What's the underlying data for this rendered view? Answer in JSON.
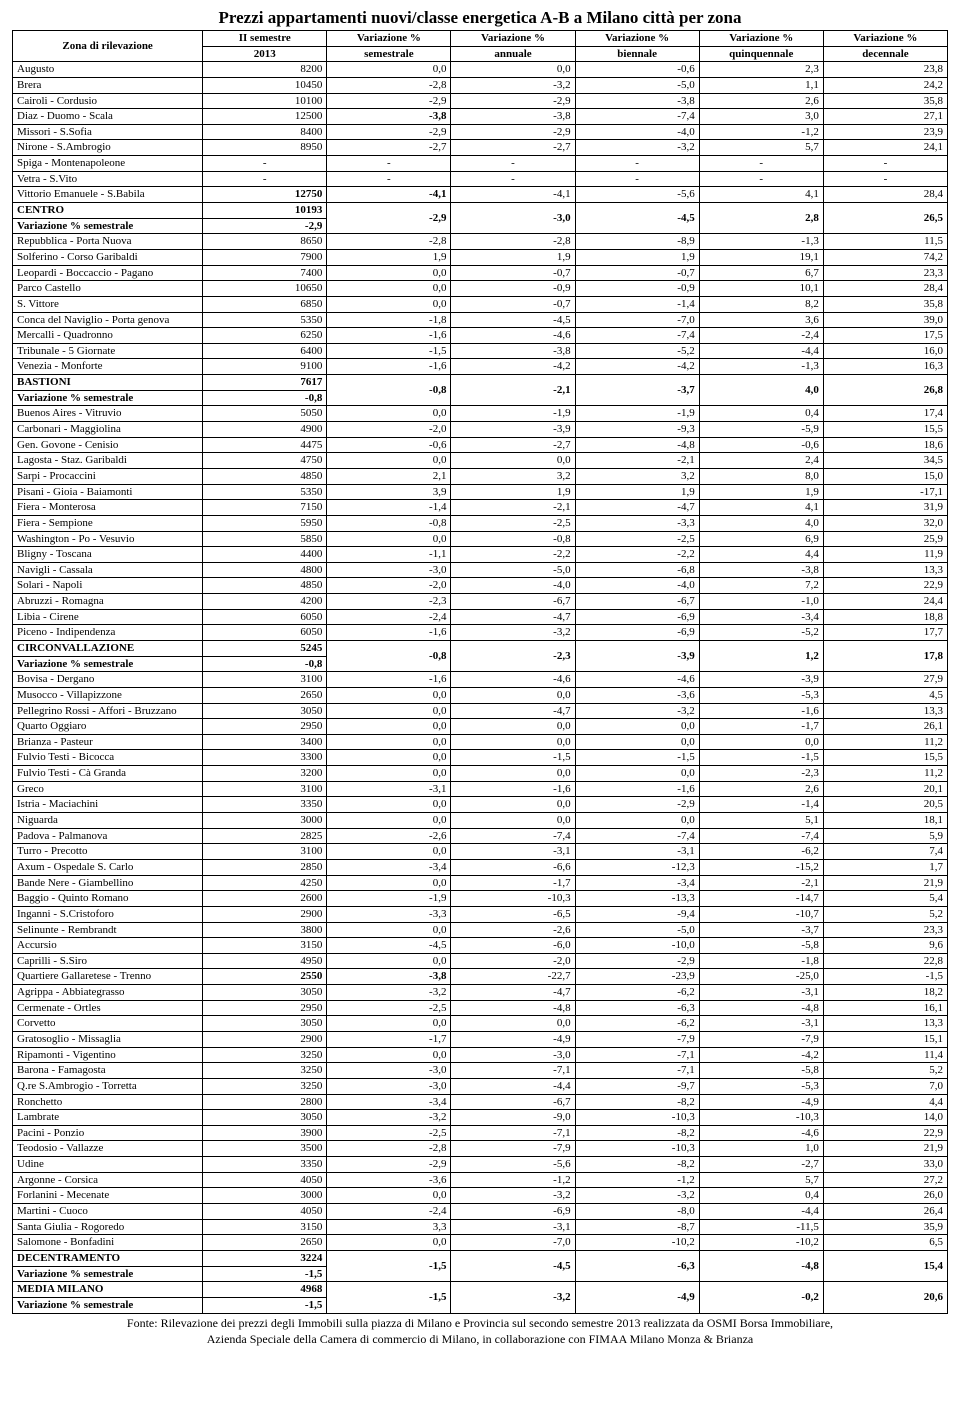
{
  "title": "Prezzi appartamenti nuovi/classe energetica A-B a Milano città per zona",
  "headers": {
    "zone": "Zona di rilevazione",
    "c1a": "II semestre",
    "c1b": "2013",
    "c2a": "Variazione %",
    "c2b": "semestrale",
    "c3a": "Variazione %",
    "c3b": "annuale",
    "c4a": "Variazione %",
    "c4b": "biennale",
    "c5a": "Variazione %",
    "c5b": "quinquennale",
    "c6a": "Variazione %",
    "c6b": "decennale"
  },
  "rows": [
    {
      "z": "Augusto",
      "v": [
        "8200",
        "0,0",
        "0,0",
        "-0,6",
        "2,3",
        "23,8"
      ]
    },
    {
      "z": "Brera",
      "v": [
        "10450",
        "-2,8",
        "-3,2",
        "-5,0",
        "1,1",
        "24,2"
      ]
    },
    {
      "z": "Cairoli - Cordusio",
      "v": [
        "10100",
        "-2,9",
        "-2,9",
        "-3,8",
        "2,6",
        "35,8"
      ]
    },
    {
      "z": "Diaz - Duomo - Scala",
      "v": [
        "12500",
        "-3,8",
        "-3,8",
        "-7,4",
        "3,0",
        "27,1"
      ],
      "bold_cols": [
        1
      ]
    },
    {
      "z": "Missori - S.Sofia",
      "v": [
        "8400",
        "-2,9",
        "-2,9",
        "-4,0",
        "-1,2",
        "23,9"
      ]
    },
    {
      "z": "Nirone - S.Ambrogio",
      "v": [
        "8950",
        "-2,7",
        "-2,7",
        "-3,2",
        "5,7",
        "24,1"
      ]
    },
    {
      "z": "Spiga - Montenapoleone",
      "v": [
        "-",
        "-",
        "-",
        "-",
        "-",
        "-"
      ],
      "center": true
    },
    {
      "z": "Vetra - S.Vito",
      "v": [
        "-",
        "-",
        "-",
        "-",
        "-",
        "-"
      ],
      "center": true
    },
    {
      "z": "Vittorio Emanuele - S.Babila",
      "v": [
        "12750",
        "-4,1",
        "-4,1",
        "-5,6",
        "4,1",
        "28,4"
      ],
      "bold_cols": [
        0,
        1
      ]
    },
    {
      "z": "CENTRO",
      "v": [
        "10193"
      ],
      "bold": true,
      "group_start": true,
      "gv": [
        "-2,9",
        "-3,0",
        "-4,5",
        "2,8",
        "26,5"
      ]
    },
    {
      "z": "Variazione % semestrale",
      "v": [
        "-2,9"
      ],
      "bold": true,
      "group_end": true
    },
    {
      "z": "Repubblica - Porta Nuova",
      "v": [
        "8650",
        "-2,8",
        "-2,8",
        "-8,9",
        "-1,3",
        "11,5"
      ]
    },
    {
      "z": "Solferino - Corso Garibaldi",
      "v": [
        "7900",
        "1,9",
        "1,9",
        "1,9",
        "19,1",
        "74,2"
      ]
    },
    {
      "z": "Leopardi - Boccaccio - Pagano",
      "v": [
        "7400",
        "0,0",
        "-0,7",
        "-0,7",
        "6,7",
        "23,3"
      ]
    },
    {
      "z": "Parco Castello",
      "v": [
        "10650",
        "0,0",
        "-0,9",
        "-0,9",
        "10,1",
        "28,4"
      ]
    },
    {
      "z": "S. Vittore",
      "v": [
        "6850",
        "0,0",
        "-0,7",
        "-1,4",
        "8,2",
        "35,8"
      ]
    },
    {
      "z": "Conca del Naviglio - Porta genova",
      "v": [
        "5350",
        "-1,8",
        "-4,5",
        "-7,0",
        "3,6",
        "39,0"
      ]
    },
    {
      "z": "Mercalli - Quadronno",
      "v": [
        "6250",
        "-1,6",
        "-4,6",
        "-7,4",
        "-2,4",
        "17,5"
      ]
    },
    {
      "z": "Tribunale - 5 Giornate",
      "v": [
        "6400",
        "-1,5",
        "-3,8",
        "-5,2",
        "-4,4",
        "16,0"
      ]
    },
    {
      "z": "Venezia - Monforte",
      "v": [
        "9100",
        "-1,6",
        "-4,2",
        "-4,2",
        "-1,3",
        "16,3"
      ]
    },
    {
      "z": "BASTIONI",
      "v": [
        "7617"
      ],
      "bold": true,
      "group_start": true,
      "gv": [
        "-0,8",
        "-2,1",
        "-3,7",
        "4,0",
        "26,8"
      ]
    },
    {
      "z": "Variazione % semestrale",
      "v": [
        "-0,8"
      ],
      "bold": true,
      "group_end": true
    },
    {
      "z": "Buenos Aires - Vitruvio",
      "v": [
        "5050",
        "0,0",
        "-1,9",
        "-1,9",
        "0,4",
        "17,4"
      ]
    },
    {
      "z": "Carbonari - Maggiolina",
      "v": [
        "4900",
        "-2,0",
        "-3,9",
        "-9,3",
        "-5,9",
        "15,5"
      ]
    },
    {
      "z": "Gen. Govone - Cenisio",
      "v": [
        "4475",
        "-0,6",
        "-2,7",
        "-4,8",
        "-0,6",
        "18,6"
      ]
    },
    {
      "z": "Lagosta - Staz. Garibaldi",
      "v": [
        "4750",
        "0,0",
        "0,0",
        "-2,1",
        "2,4",
        "34,5"
      ]
    },
    {
      "z": "Sarpi - Procaccini",
      "v": [
        "4850",
        "2,1",
        "3,2",
        "3,2",
        "8,0",
        "15,0"
      ]
    },
    {
      "z": "Pisani - Gioia - Baiamonti",
      "v": [
        "5350",
        "3,9",
        "1,9",
        "1,9",
        "1,9",
        "-17,1"
      ]
    },
    {
      "z": "Fiera - Monterosa",
      "v": [
        "7150",
        "-1,4",
        "-2,1",
        "-4,7",
        "4,1",
        "31,9"
      ]
    },
    {
      "z": "Fiera - Sempione",
      "v": [
        "5950",
        "-0,8",
        "-2,5",
        "-3,3",
        "4,0",
        "32,0"
      ]
    },
    {
      "z": "Washington - Po - Vesuvio",
      "v": [
        "5850",
        "0,0",
        "-0,8",
        "-2,5",
        "6,9",
        "25,9"
      ]
    },
    {
      "z": "Bligny - Toscana",
      "v": [
        "4400",
        "-1,1",
        "-2,2",
        "-2,2",
        "4,4",
        "11,9"
      ]
    },
    {
      "z": "Navigli - Cassala",
      "v": [
        "4800",
        "-3,0",
        "-5,0",
        "-6,8",
        "-3,8",
        "13,3"
      ]
    },
    {
      "z": "Solari - Napoli",
      "v": [
        "4850",
        "-2,0",
        "-4,0",
        "-4,0",
        "7,2",
        "22,9"
      ]
    },
    {
      "z": "Abruzzi - Romagna",
      "v": [
        "4200",
        "-2,3",
        "-6,7",
        "-6,7",
        "-1,0",
        "24,4"
      ]
    },
    {
      "z": "Libia - Cirene",
      "v": [
        "6050",
        "-2,4",
        "-4,7",
        "-6,9",
        "-3,4",
        "18,8"
      ]
    },
    {
      "z": "Piceno - Indipendenza",
      "v": [
        "6050",
        "-1,6",
        "-3,2",
        "-6,9",
        "-5,2",
        "17,7"
      ]
    },
    {
      "z": "CIRCONVALLAZIONE",
      "v": [
        "5245"
      ],
      "bold": true,
      "group_start": true,
      "gv": [
        "-0,8",
        "-2,3",
        "-3,9",
        "1,2",
        "17,8"
      ]
    },
    {
      "z": "Variazione % semestrale",
      "v": [
        "-0,8"
      ],
      "bold": true,
      "group_end": true
    },
    {
      "z": "Bovisa - Dergano",
      "v": [
        "3100",
        "-1,6",
        "-4,6",
        "-4,6",
        "-3,9",
        "27,9"
      ]
    },
    {
      "z": "Musocco - Villapizzone",
      "v": [
        "2650",
        "0,0",
        "0,0",
        "-3,6",
        "-5,3",
        "4,5"
      ]
    },
    {
      "z": "Pellegrino Rossi - Affori - Bruzzano",
      "v": [
        "3050",
        "0,0",
        "-4,7",
        "-3,2",
        "-1,6",
        "13,3"
      ]
    },
    {
      "z": "Quarto Oggiaro",
      "v": [
        "2950",
        "0,0",
        "0,0",
        "0,0",
        "-1,7",
        "26,1"
      ]
    },
    {
      "z": "Brianza - Pasteur",
      "v": [
        "3400",
        "0,0",
        "0,0",
        "0,0",
        "0,0",
        "11,2"
      ]
    },
    {
      "z": "Fulvio Testi - Bicocca",
      "v": [
        "3300",
        "0,0",
        "-1,5",
        "-1,5",
        "-1,5",
        "15,5"
      ]
    },
    {
      "z": "Fulvio Testi - Cà Granda",
      "v": [
        "3200",
        "0,0",
        "0,0",
        "0,0",
        "-2,3",
        "11,2"
      ]
    },
    {
      "z": "Greco",
      "v": [
        "3100",
        "-3,1",
        "-1,6",
        "-1,6",
        "2,6",
        "20,1"
      ]
    },
    {
      "z": "Istria - Maciachini",
      "v": [
        "3350",
        "0,0",
        "0,0",
        "-2,9",
        "-1,4",
        "20,5"
      ]
    },
    {
      "z": "Niguarda",
      "v": [
        "3000",
        "0,0",
        "0,0",
        "0,0",
        "5,1",
        "18,1"
      ]
    },
    {
      "z": "Padova - Palmanova",
      "v": [
        "2825",
        "-2,6",
        "-7,4",
        "-7,4",
        "-7,4",
        "5,9"
      ]
    },
    {
      "z": "Turro - Precotto",
      "v": [
        "3100",
        "0,0",
        "-3,1",
        "-3,1",
        "-6,2",
        "7,4"
      ]
    },
    {
      "z": "Axum - Ospedale S. Carlo",
      "v": [
        "2850",
        "-3,4",
        "-6,6",
        "-12,3",
        "-15,2",
        "1,7"
      ]
    },
    {
      "z": "Bande Nere - Giambellino",
      "v": [
        "4250",
        "0,0",
        "-1,7",
        "-3,4",
        "-2,1",
        "21,9"
      ]
    },
    {
      "z": "Baggio - Quinto Romano",
      "v": [
        "2600",
        "-1,9",
        "-10,3",
        "-13,3",
        "-14,7",
        "5,4"
      ]
    },
    {
      "z": "Inganni - S.Cristoforo",
      "v": [
        "2900",
        "-3,3",
        "-6,5",
        "-9,4",
        "-10,7",
        "5,2"
      ]
    },
    {
      "z": "Selinunte - Rembrandt",
      "v": [
        "3800",
        "0,0",
        "-2,6",
        "-5,0",
        "-3,7",
        "23,3"
      ]
    },
    {
      "z": "Accursio",
      "v": [
        "3150",
        "-4,5",
        "-6,0",
        "-10,0",
        "-5,8",
        "9,6"
      ]
    },
    {
      "z": "Caprilli - S.Siro",
      "v": [
        "4950",
        "0,0",
        "-2,0",
        "-2,9",
        "-1,8",
        "22,8"
      ]
    },
    {
      "z": "Quartiere Gallaretese - Trenno",
      "v": [
        "2550",
        "-3,8",
        "-22,7",
        "-23,9",
        "-25,0",
        "-1,5"
      ],
      "bold_cols": [
        0,
        1
      ]
    },
    {
      "z": "Agrippa - Abbiategrasso",
      "v": [
        "3050",
        "-3,2",
        "-4,7",
        "-6,2",
        "-3,1",
        "18,2"
      ]
    },
    {
      "z": "Cermenate - Ortles",
      "v": [
        "2950",
        "-2,5",
        "-4,8",
        "-6,3",
        "-4,8",
        "16,1"
      ]
    },
    {
      "z": "Corvetto",
      "v": [
        "3050",
        "0,0",
        "0,0",
        "-6,2",
        "-3,1",
        "13,3"
      ]
    },
    {
      "z": "Gratosoglio - Missaglia",
      "v": [
        "2900",
        "-1,7",
        "-4,9",
        "-7,9",
        "-7,9",
        "15,1"
      ]
    },
    {
      "z": "Ripamonti - Vigentino",
      "v": [
        "3250",
        "0,0",
        "-3,0",
        "-7,1",
        "-4,2",
        "11,4"
      ]
    },
    {
      "z": "Barona - Famagosta",
      "v": [
        "3250",
        "-3,0",
        "-7,1",
        "-7,1",
        "-5,8",
        "5,2"
      ]
    },
    {
      "z": "Q.re S.Ambrogio - Torretta",
      "v": [
        "3250",
        "-3,0",
        "-4,4",
        "-9,7",
        "-5,3",
        "7,0"
      ]
    },
    {
      "z": "Ronchetto",
      "v": [
        "2800",
        "-3,4",
        "-6,7",
        "-8,2",
        "-4,9",
        "4,4"
      ]
    },
    {
      "z": "Lambrate",
      "v": [
        "3050",
        "-3,2",
        "-9,0",
        "-10,3",
        "-10,3",
        "14,0"
      ]
    },
    {
      "z": "Pacini - Ponzio",
      "v": [
        "3900",
        "-2,5",
        "-7,1",
        "-8,2",
        "-4,6",
        "22,9"
      ]
    },
    {
      "z": "Teodosio - Vallazze",
      "v": [
        "3500",
        "-2,8",
        "-7,9",
        "-10,3",
        "1,0",
        "21,9"
      ]
    },
    {
      "z": "Udine",
      "v": [
        "3350",
        "-2,9",
        "-5,6",
        "-8,2",
        "-2,7",
        "33,0"
      ]
    },
    {
      "z": "Argonne - Corsica",
      "v": [
        "4050",
        "-3,6",
        "-1,2",
        "-1,2",
        "5,7",
        "27,2"
      ]
    },
    {
      "z": "Forlanini - Mecenate",
      "v": [
        "3000",
        "0,0",
        "-3,2",
        "-3,2",
        "0,4",
        "26,0"
      ]
    },
    {
      "z": "Martini - Cuoco",
      "v": [
        "4050",
        "-2,4",
        "-6,9",
        "-8,0",
        "-4,4",
        "26,4"
      ]
    },
    {
      "z": "Santa Giulia - Rogoredo",
      "v": [
        "3150",
        "3,3",
        "-3,1",
        "-8,7",
        "-11,5",
        "35,9"
      ]
    },
    {
      "z": "Salomone - Bonfadini",
      "v": [
        "2650",
        "0,0",
        "-7,0",
        "-10,2",
        "-10,2",
        "6,5"
      ]
    },
    {
      "z": "DECENTRAMENTO",
      "v": [
        "3224"
      ],
      "bold": true,
      "group_start": true,
      "gv": [
        "-1,5",
        "-4,5",
        "-6,3",
        "-4,8",
        "15,4"
      ]
    },
    {
      "z": "Variazione % semestrale",
      "v": [
        "-1,5"
      ],
      "bold": true,
      "group_end": true
    },
    {
      "z": "MEDIA MILANO",
      "v": [
        "4968"
      ],
      "bold": true,
      "group_start": true,
      "gv": [
        "-1,5",
        "-3,2",
        "-4,9",
        "-0,2",
        "20,6"
      ],
      "bold_cols": [
        0
      ]
    },
    {
      "z": "Variazione % semestrale",
      "v": [
        "-1,5"
      ],
      "bold": true,
      "group_end": true
    }
  ],
  "footer1": "Fonte: Rilevazione dei prezzi degli Immobili sulla piazza di Milano e Provincia sul secondo semestre 2013 realizzata da OSMI Borsa Immobiliare,",
  "footer2": "Azienda Speciale della Camera di commercio di Milano, in collaborazione con FIMAA Milano Monza & Brianza"
}
